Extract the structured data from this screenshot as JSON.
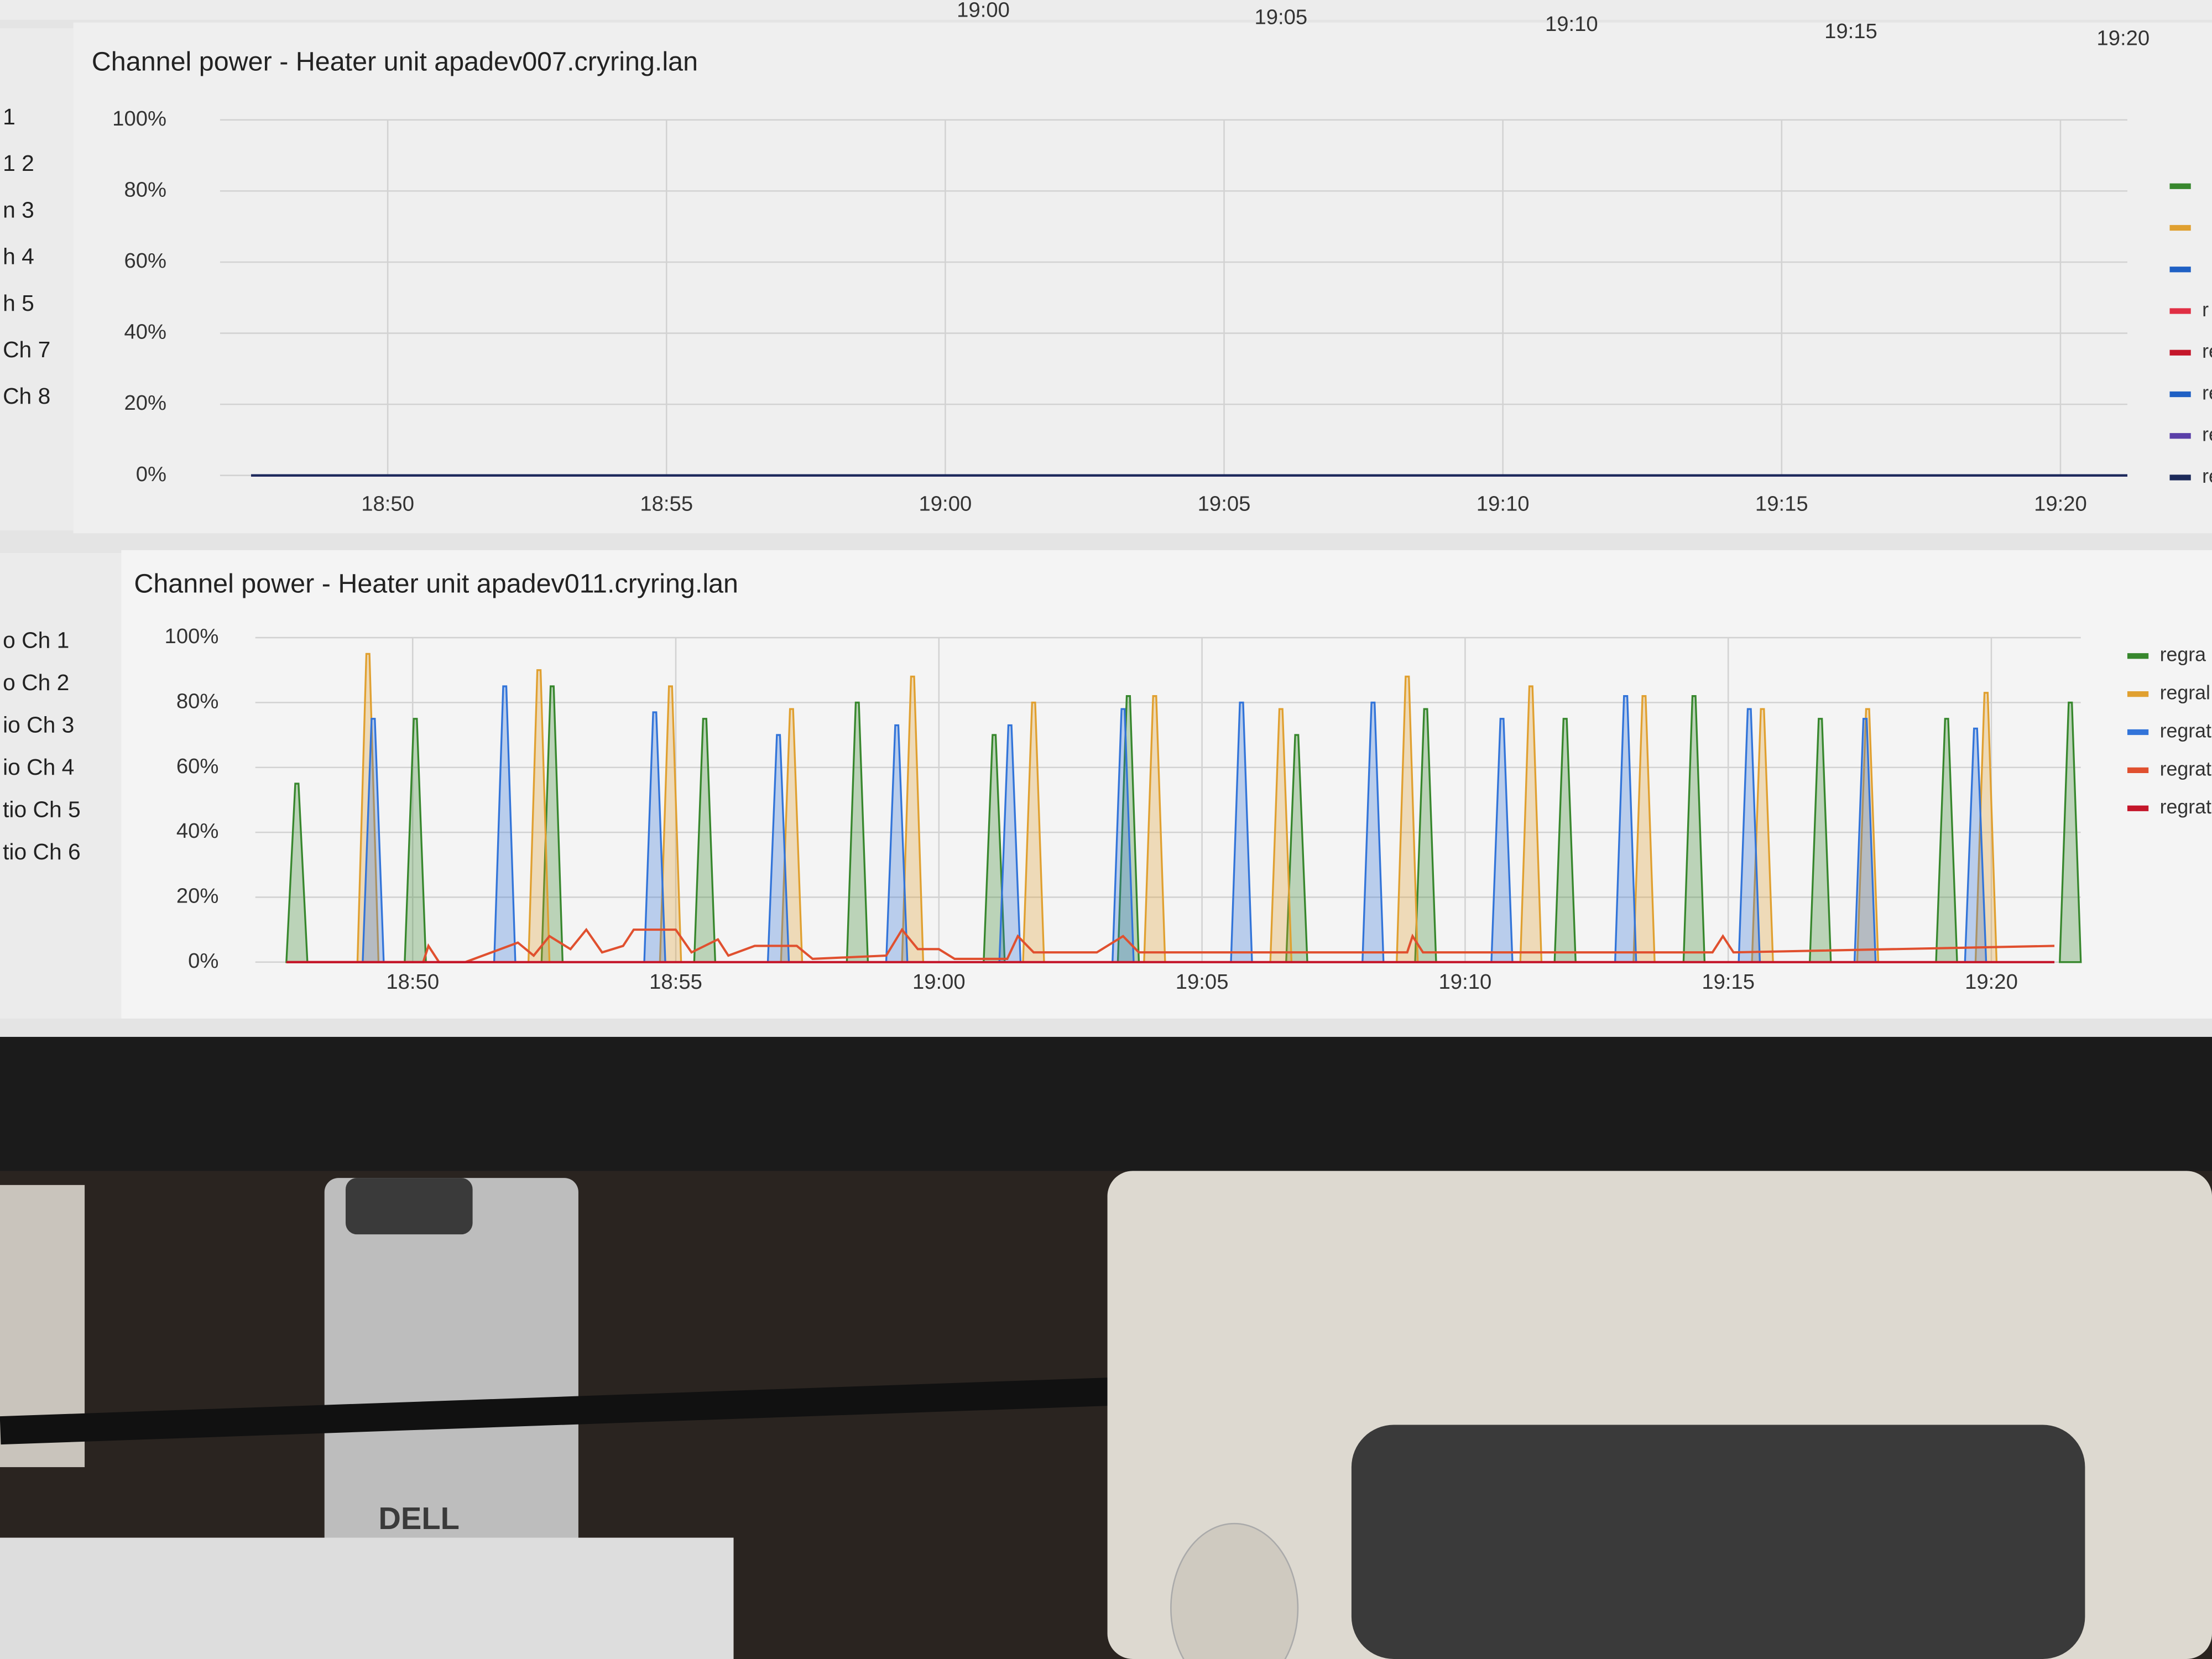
{
  "top_strip": {
    "labels": [
      "19:00",
      "19:05",
      "19:10",
      "19:15",
      "19:20"
    ]
  },
  "left_panel_1": [
    "1",
    "1 2",
    "n 3",
    "h 4",
    "h 5",
    "Ch 7",
    "Ch 8"
  ],
  "left_panel_2": [
    "o Ch 1",
    "o Ch 2",
    "io Ch 3",
    "io Ch 4",
    "tio Ch 5",
    "tio Ch 6"
  ],
  "desk": {
    "logo": "DELL"
  },
  "chart_data": [
    {
      "type": "line",
      "title": "Channel power - Heater unit apadev007.cryring.lan",
      "xlim": [
        47.55,
        81.2
      ],
      "xticks": [
        {
          "value": 50,
          "label": "18:50"
        },
        {
          "value": 55,
          "label": "18:55"
        },
        {
          "value": 60,
          "label": "19:00"
        },
        {
          "value": 65,
          "label": "19:05"
        },
        {
          "value": 70,
          "label": "19:10"
        },
        {
          "value": 75,
          "label": "19:15"
        },
        {
          "value": 80,
          "label": "19:20"
        }
      ],
      "ylim": [
        0,
        100
      ],
      "yticks": [
        {
          "value": 0,
          "label": "0%"
        },
        {
          "value": 20,
          "label": "20%"
        },
        {
          "value": 40,
          "label": "40%"
        },
        {
          "value": 60,
          "label": "60%"
        },
        {
          "value": 80,
          "label": "80%"
        },
        {
          "value": 100,
          "label": "100%"
        }
      ],
      "grid": true,
      "legend": "right",
      "series": [
        {
          "name": null,
          "color": "#37872d",
          "x": [
            47.55,
            81.2
          ],
          "values": [
            0,
            0
          ]
        },
        {
          "name": null,
          "color": "#e0a030",
          "x": [
            47.55,
            81.2
          ],
          "values": [
            0,
            0
          ]
        },
        {
          "name": null,
          "color": "#1f60c4",
          "x": [
            47.55,
            81.2
          ],
          "values": [
            0,
            0
          ]
        },
        {
          "name": "r",
          "color": "#e02f44",
          "x": [
            47.55,
            81.2
          ],
          "values": [
            0,
            0
          ]
        },
        {
          "name": "re",
          "color": "#c4162a",
          "x": [
            47.55,
            81.2
          ],
          "values": [
            0,
            0
          ]
        },
        {
          "name": "re",
          "color": "#1f60c4",
          "x": [
            47.55,
            81.2
          ],
          "values": [
            0,
            0
          ]
        },
        {
          "name": "reg",
          "color": "#5a3fa8",
          "x": [
            47.55,
            81.2
          ],
          "values": [
            0,
            0
          ]
        },
        {
          "name": "reg",
          "color": "#1c2a5a",
          "x": [
            47.55,
            81.2
          ],
          "values": [
            0,
            0
          ]
        }
      ]
    },
    {
      "type": "spike",
      "title": "Channel power - Heater unit apadev011.cryring.lan",
      "xlim": [
        47.6,
        81.7
      ],
      "xticks": [
        {
          "value": 50,
          "label": "18:50"
        },
        {
          "value": 55,
          "label": "18:55"
        },
        {
          "value": 60,
          "label": "19:00"
        },
        {
          "value": 65,
          "label": "19:05"
        },
        {
          "value": 70,
          "label": "19:10"
        },
        {
          "value": 75,
          "label": "19:15"
        },
        {
          "value": 80,
          "label": "19:20"
        }
      ],
      "ylim": [
        0,
        100
      ],
      "yticks": [
        {
          "value": 0,
          "label": "0%"
        },
        {
          "value": 20,
          "label": "20%"
        },
        {
          "value": 40,
          "label": "40%"
        },
        {
          "value": 60,
          "label": "60%"
        },
        {
          "value": 80,
          "label": "80%"
        },
        {
          "value": 100,
          "label": "100%"
        }
      ],
      "grid": true,
      "legend": "right",
      "series": [
        {
          "name": "regra",
          "color": "#37872d",
          "x": [
            47.8,
            50.05,
            52.65,
            55.55,
            58.45,
            61.05,
            63.6,
            66.8,
            69.25,
            71.9,
            74.35,
            76.75,
            79.15,
            81.5
          ],
          "values": [
            55,
            75,
            85,
            75,
            80,
            70,
            82,
            70,
            78,
            75,
            82,
            75,
            75,
            80
          ]
        },
        {
          "name": "regral",
          "color": "#e0a030",
          "x": [
            49.15,
            52.4,
            54.9,
            57.2,
            59.5,
            61.8,
            64.1,
            66.5,
            68.9,
            71.25,
            73.4,
            75.65,
            77.65,
            79.9
          ],
          "values": [
            95,
            90,
            85,
            78,
            88,
            80,
            82,
            78,
            88,
            85,
            82,
            78,
            78,
            83
          ]
        },
        {
          "name": "regrat",
          "color": "#3274d9",
          "x": [
            49.25,
            51.75,
            54.6,
            56.95,
            59.2,
            61.35,
            63.5,
            65.75,
            68.25,
            70.7,
            73.05,
            75.4,
            77.6,
            79.7
          ],
          "values": [
            75,
            85,
            77,
            70,
            73,
            73,
            78,
            80,
            80,
            75,
            82,
            78,
            75,
            72
          ]
        },
        {
          "name": "regrati",
          "color": "#e0502f",
          "style": "line",
          "x": [
            47.6,
            50.2,
            50.3,
            50.5,
            51,
            51.5,
            52,
            52.3,
            52.6,
            53,
            53.3,
            53.6,
            54,
            54.2,
            55,
            55.3,
            55.8,
            56,
            56.5,
            57.3,
            57.6,
            59,
            59.3,
            59.6,
            60,
            60.3,
            61.3,
            61.5,
            61.8,
            63,
            63.5,
            63.8,
            68.9,
            69,
            69.2,
            74.7,
            74.9,
            75.1,
            81.2
          ],
          "values": [
            0,
            0,
            5,
            0,
            0,
            3,
            6,
            2,
            8,
            4,
            10,
            3,
            5,
            10,
            10,
            3,
            7,
            2,
            5,
            5,
            1,
            2,
            10,
            4,
            4,
            1,
            1,
            8,
            3,
            3,
            8,
            3,
            3,
            8,
            3,
            3,
            8,
            3,
            5
          ]
        },
        {
          "name": "regratic",
          "color": "#c4162a",
          "style": "line",
          "x": [
            47.6,
            81.2
          ],
          "values": [
            0,
            0
          ]
        }
      ]
    }
  ]
}
